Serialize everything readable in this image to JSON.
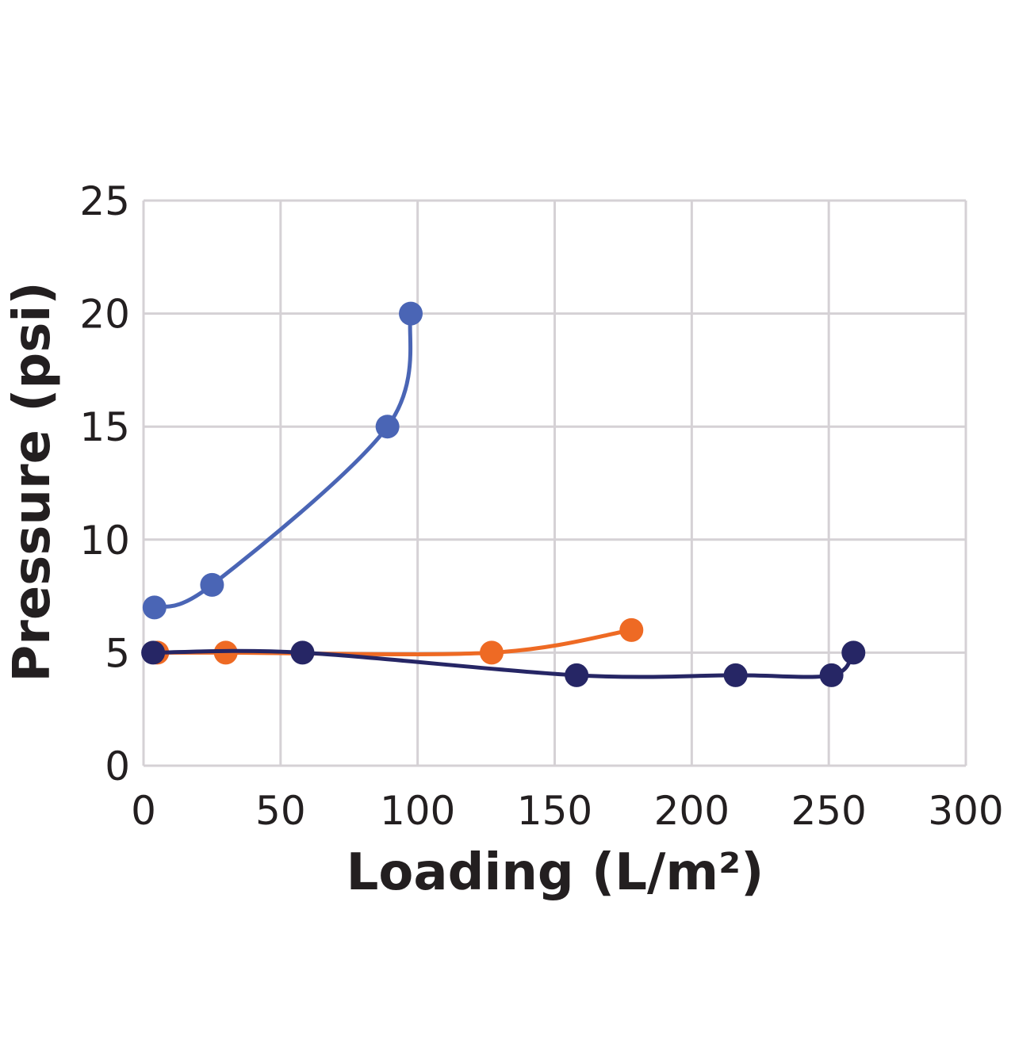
{
  "chart_data": {
    "type": "line",
    "title": "",
    "xlabel": "Loading (L/m²)",
    "ylabel": "Pressure (psi)",
    "xlim": [
      0,
      300
    ],
    "ylim": [
      0,
      25
    ],
    "xticks": [
      "0",
      "50",
      "100",
      "150",
      "200",
      "250",
      "300"
    ],
    "yticks": [
      "0",
      "5",
      "10",
      "15",
      "20",
      "25"
    ],
    "grid": true,
    "legend": "none",
    "smooth": true,
    "series": [
      {
        "color": "#4a65b5",
        "x": [
          4,
          25,
          89,
          97.5
        ],
        "y": [
          7,
          8,
          15,
          20
        ]
      },
      {
        "color": "#ee6a24",
        "x": [
          5,
          30,
          127,
          178
        ],
        "y": [
          5,
          5,
          5,
          6
        ]
      },
      {
        "color": "#262665",
        "x": [
          3.5,
          58,
          158,
          216,
          251,
          259
        ],
        "y": [
          5,
          5,
          4,
          4,
          4,
          5
        ]
      }
    ]
  }
}
